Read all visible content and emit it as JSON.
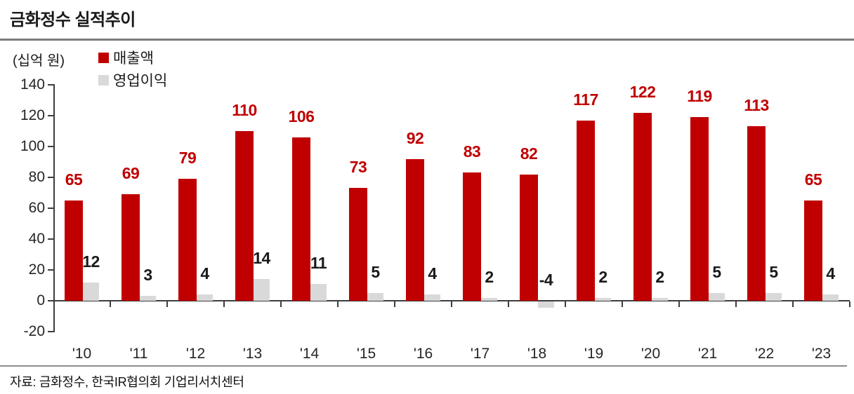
{
  "title": "금화정수 실적추이",
  "unit_label": "(십억 원)",
  "source": "자료: 금화정수, 한국IR협의회 기업리서치센터",
  "colors": {
    "revenue": "#c00000",
    "profit": "#d9d9d9",
    "revenue_label": "#c00000",
    "profit_label": "#1a1a1a",
    "axis": "#3d3d3d",
    "divider": "#7d7d7d"
  },
  "legend": [
    {
      "label": "매출액",
      "color": "#c00000"
    },
    {
      "label": "영업이익",
      "color": "#d9d9d9"
    }
  ],
  "chart_data": {
    "type": "bar",
    "title": "금화정수 실적추이",
    "ylabel": "(십억 원)",
    "categories": [
      "'10",
      "'11",
      "'12",
      "'13",
      "'14",
      "'15",
      "'16",
      "'17",
      "'18",
      "'19",
      "'20",
      "'21",
      "'22",
      "'23"
    ],
    "series": [
      {
        "name": "매출액",
        "color": "#c00000",
        "label_color": "#c00000",
        "values": [
          65,
          69,
          79,
          110,
          106,
          73,
          92,
          83,
          82,
          117,
          122,
          119,
          113,
          65
        ]
      },
      {
        "name": "영업이익",
        "color": "#d9d9d9",
        "label_color": "#1a1a1a",
        "values": [
          12,
          3,
          4,
          14,
          11,
          5,
          4,
          2,
          -4,
          2,
          2,
          5,
          5,
          4
        ]
      }
    ],
    "ylim": [
      -20,
      140
    ],
    "yticks": [
      140,
      120,
      100,
      80,
      60,
      40,
      20,
      0,
      -20
    ],
    "grid": false,
    "legend_position": "top-left",
    "data_labels": "outside-end"
  }
}
